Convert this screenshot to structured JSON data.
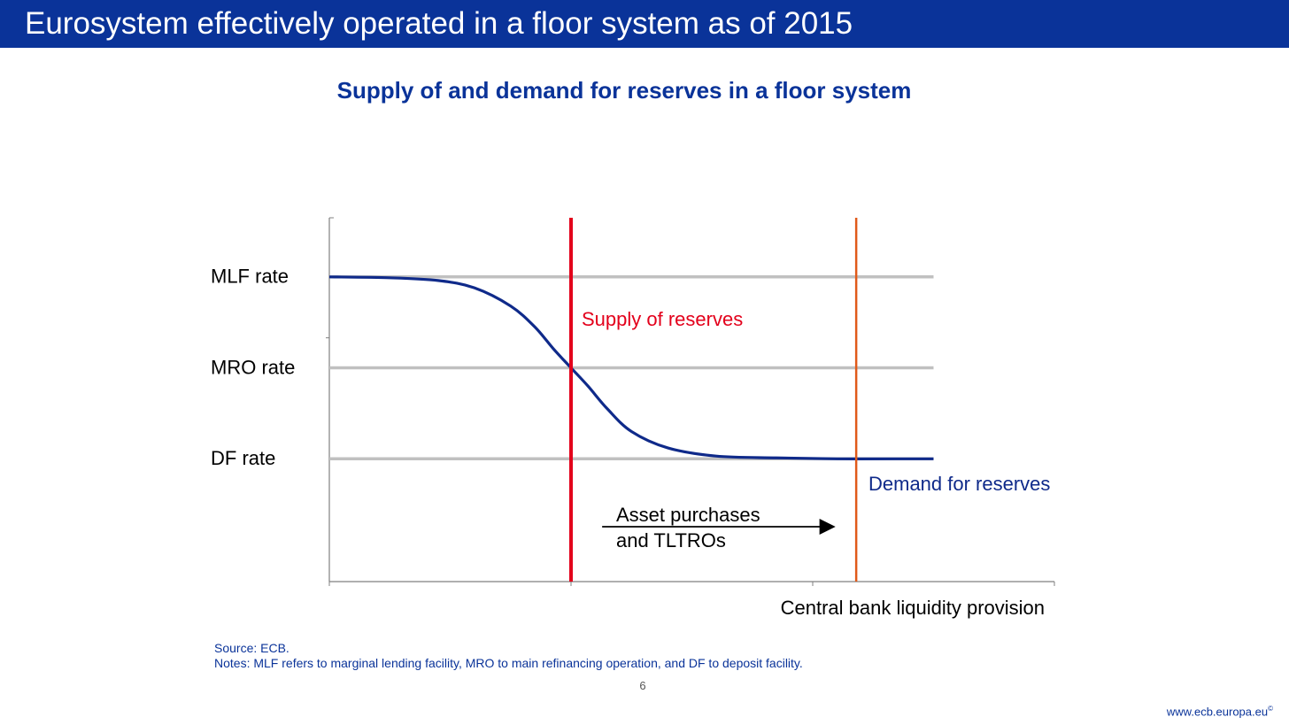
{
  "header": {
    "title": "Eurosystem effectively operated in a floor system as of 2015"
  },
  "colors": {
    "brand_blue": "#0a3399",
    "supply_red": "#e3001b",
    "shift_orange": "#e05a1a",
    "rate_line_grey": "#c0c0c0",
    "demand_navy": "#0f2a8a"
  },
  "chart_data": {
    "type": "line",
    "title": "Supply of and demand for reserves in a floor system",
    "xlabel": "Central bank liquidity provision",
    "ylabel": "",
    "rate_levels": [
      {
        "label": "MLF rate",
        "value": 3
      },
      {
        "label": "MRO rate",
        "value": 2
      },
      {
        "label": "DF rate",
        "value": 1
      }
    ],
    "xlim": [
      0,
      3
    ],
    "ylim": [
      -0.35,
      3.65
    ],
    "x_ticks": [
      0,
      1,
      2,
      3
    ],
    "y_ticks": [
      2.33
    ],
    "series": [
      {
        "name": "Demand for reserves",
        "x": [
          0,
          0.25,
          0.45,
          0.6,
          0.75,
          0.85,
          0.93,
          1.0,
          1.07,
          1.15,
          1.25,
          1.4,
          1.6,
          1.85,
          2.1,
          2.35,
          2.5
        ],
        "values": [
          3.0,
          2.99,
          2.96,
          2.88,
          2.68,
          2.45,
          2.2,
          2.0,
          1.8,
          1.55,
          1.3,
          1.12,
          1.03,
          1.01,
          1.0,
          1.0,
          1.0
        ]
      }
    ],
    "vertical_lines": [
      {
        "name": "Supply of reserves",
        "x": 1.0
      },
      {
        "name": "",
        "x": 2.18
      }
    ],
    "annotations": {
      "supply_label": "Supply of reserves",
      "demand_label": "Demand for reserves",
      "shift_label_line1": "Asset purchases",
      "shift_label_line2": "and TLTROs"
    },
    "shift_arrow": {
      "from_x": 1.18,
      "to_x": 2.08,
      "y": 0.6
    }
  },
  "source": "Source: ECB.",
  "notes": "Notes: MLF refers to marginal lending facility, MRO to main refinancing operation, and DF to deposit facility.",
  "page_number": "6",
  "footer": {
    "url": "www.ecb.europa.eu",
    "mark": "©"
  }
}
